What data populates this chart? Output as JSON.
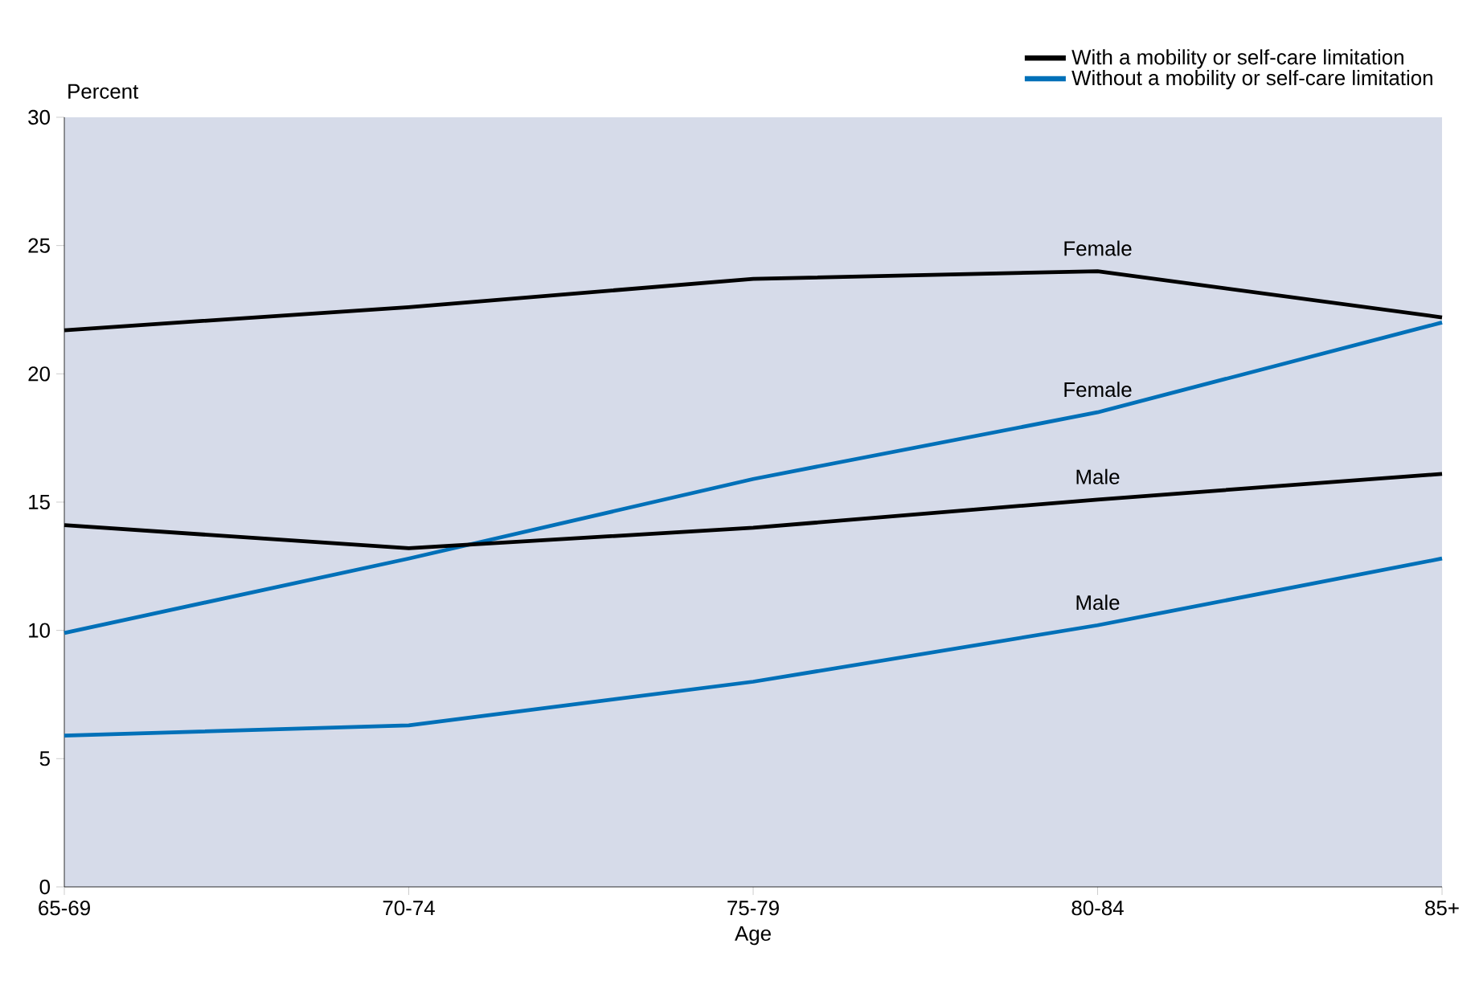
{
  "chart_data": {
    "type": "line",
    "ylabel": "Percent",
    "xlabel": "Age",
    "categories": [
      "65-69",
      "70-74",
      "75-79",
      "80-84",
      "85+"
    ],
    "series": [
      {
        "name": "With a mobility or self-care limitation",
        "color": "#000000",
        "values": [
          21.7,
          22.6,
          23.7,
          24.0,
          22.2
        ]
      },
      {
        "name": "Without a mobility or self-care limitation",
        "color": "#0070b8",
        "values": [
          9.9,
          12.8,
          15.9,
          18.5,
          22.0
        ]
      },
      {
        "color": "#000000",
        "values": [
          14.1,
          13.2,
          14.0,
          15.1,
          16.1
        ]
      },
      {
        "color": "#0070b8",
        "values": [
          5.9,
          6.3,
          8.0,
          10.2,
          12.8
        ]
      }
    ],
    "annotations": [
      "Female",
      "Female",
      "Male",
      "Male"
    ],
    "ylim": [
      0,
      30
    ],
    "yticks": [
      0,
      5,
      10,
      15,
      20,
      25,
      30
    ],
    "grid": false,
    "legend": "top right",
    "marker": "none",
    "line_style": "solid"
  }
}
